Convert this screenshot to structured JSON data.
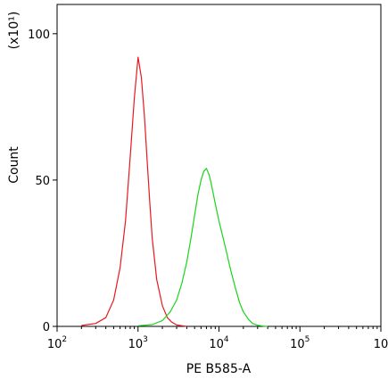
{
  "chart_data": {
    "type": "line",
    "title": "",
    "xlabel": "PE B585-A",
    "ylabel": "Count",
    "y_multiplier": "(x10¹)",
    "x_scale": "log",
    "xlim": [
      100,
      1000000
    ],
    "ylim": [
      0,
      110
    ],
    "x_ticks": [
      {
        "value": 100,
        "base": "10",
        "exp": "2"
      },
      {
        "value": 1000,
        "base": "10",
        "exp": "3"
      },
      {
        "value": 10000,
        "base": "10",
        "exp": "4"
      },
      {
        "value": 100000,
        "base": "10",
        "exp": "5"
      },
      {
        "value": 1000000,
        "base": "10",
        "exp": ""
      }
    ],
    "y_ticks": [
      {
        "value": 0,
        "label": "0"
      },
      {
        "value": 50,
        "label": "50"
      },
      {
        "value": 100,
        "label": "100"
      }
    ],
    "grid": false,
    "legend": "none",
    "series": [
      {
        "color": "#e8191f",
        "x": [
          200,
          300,
          400,
          500,
          600,
          700,
          800,
          900,
          1000,
          1100,
          1200,
          1300,
          1400,
          1500,
          1700,
          2000,
          2300,
          2600,
          3000,
          3500,
          4000
        ],
        "y": [
          0.3,
          1,
          3,
          9,
          20,
          36,
          58,
          78,
          92,
          85,
          72,
          56,
          42,
          30,
          16,
          7,
          3,
          1.5,
          0.5,
          0.2,
          0
        ]
      },
      {
        "color": "#19d419",
        "x": [
          1000,
          1500,
          2000,
          2500,
          3000,
          3500,
          4000,
          4500,
          5000,
          5500,
          6000,
          6500,
          7000,
          7500,
          8000,
          9000,
          10000,
          12000,
          14000,
          16000,
          18000,
          20000,
          23000,
          26000,
          30000,
          35000,
          40000
        ],
        "y": [
          0.2,
          0.6,
          2,
          5,
          9,
          15,
          22,
          30,
          38,
          45,
          50,
          53,
          54,
          52,
          49,
          42,
          36,
          27,
          19,
          13,
          8,
          5,
          2.5,
          1,
          0.4,
          0.1,
          0
        ]
      }
    ]
  }
}
